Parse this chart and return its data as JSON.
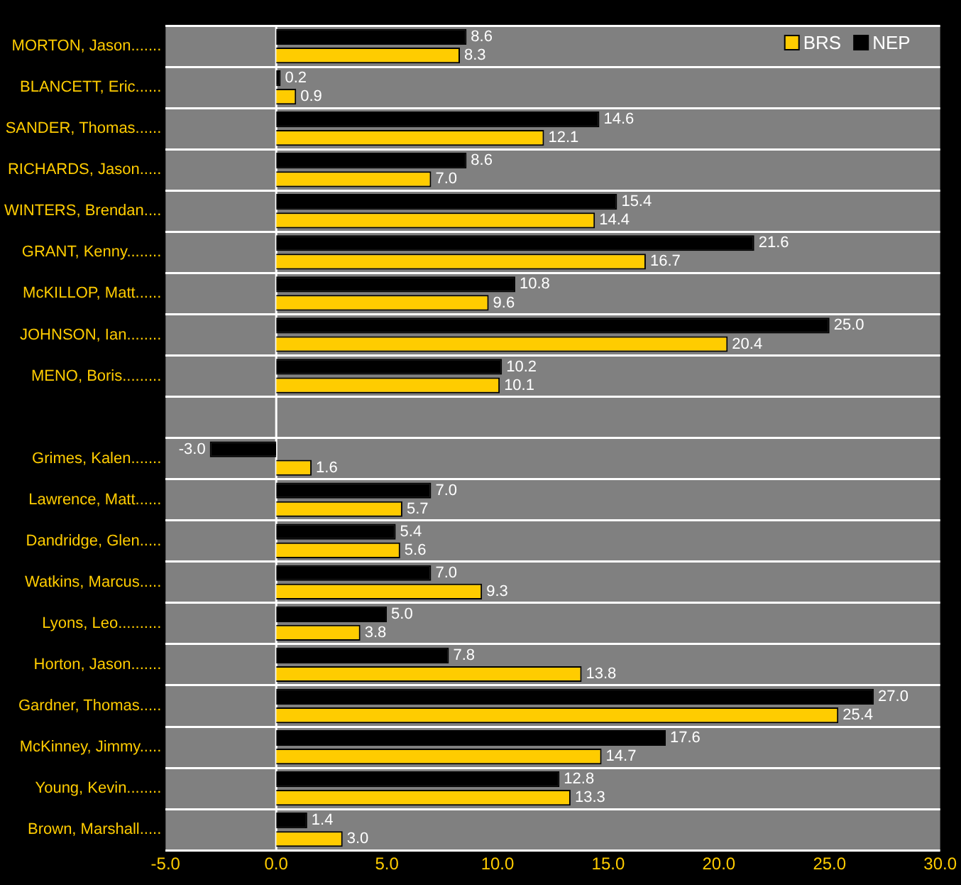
{
  "chart_data": {
    "type": "bar",
    "orientation": "horizontal",
    "categories": [
      "MORTON, Jason.......",
      "BLANCETT, Eric......",
      "SANDER, Thomas......",
      "RICHARDS, Jason.....",
      "WINTERS, Brendan....",
      "GRANT, Kenny........",
      "McKILLOP, Matt......",
      "JOHNSON, Ian........",
      "MENO, Boris.........",
      null,
      "Grimes, Kalen.......",
      "Lawrence, Matt......",
      "Dandridge, Glen.....",
      "Watkins, Marcus.....",
      "Lyons, Leo..........",
      "Horton, Jason.......",
      "Gardner, Thomas.....",
      "McKinney, Jimmy.....",
      "Young, Kevin........",
      "Brown, Marshall....."
    ],
    "series": [
      {
        "name": "NEP",
        "color": "#000000",
        "values": [
          8.6,
          0.2,
          14.6,
          8.6,
          15.4,
          21.6,
          10.8,
          25.0,
          10.2,
          null,
          -3.0,
          7.0,
          5.4,
          7.0,
          5.0,
          7.8,
          27.0,
          17.6,
          12.8,
          1.4
        ],
        "value_labels": [
          "8.6",
          "0.2",
          "14.6",
          "8.6",
          "15.4",
          "21.6",
          "10.8",
          "25.0",
          "10.2",
          null,
          "-3.0",
          "7.0",
          "5.4",
          "7.0",
          "5.0",
          "7.8",
          "27.0",
          "17.6",
          "12.8",
          "1.4"
        ]
      },
      {
        "name": "BRS",
        "color": "#ffcc00",
        "values": [
          8.3,
          0.9,
          12.1,
          7.0,
          14.4,
          16.7,
          9.6,
          20.4,
          10.1,
          null,
          1.6,
          5.7,
          5.6,
          9.3,
          3.8,
          13.8,
          25.4,
          14.7,
          13.3,
          3.0
        ],
        "value_labels": [
          "8.3",
          "0.9",
          "12.1",
          "7.0",
          "14.4",
          "16.7",
          "9.6",
          "20.4",
          "10.1",
          null,
          "1.6",
          "5.7",
          "5.6",
          "9.3",
          "3.8",
          "13.8",
          "25.4",
          "14.7",
          "13.3",
          "3.0"
        ]
      }
    ],
    "xlim": [
      -5,
      30
    ],
    "xticks": [
      {
        "value": -5,
        "label": "-5.0"
      },
      {
        "value": 0,
        "label": "0.0"
      },
      {
        "value": 5,
        "label": "5.0"
      },
      {
        "value": 10,
        "label": "10.0"
      },
      {
        "value": 15,
        "label": "15.0"
      },
      {
        "value": 20,
        "label": "20.0"
      },
      {
        "value": 25,
        "label": "25.0"
      },
      {
        "value": 30,
        "label": "30.0"
      }
    ],
    "ref_lines": [
      {
        "axis": "x",
        "value": 0,
        "color": "#ffffff"
      }
    ],
    "grid": "y",
    "legend": "top right"
  }
}
